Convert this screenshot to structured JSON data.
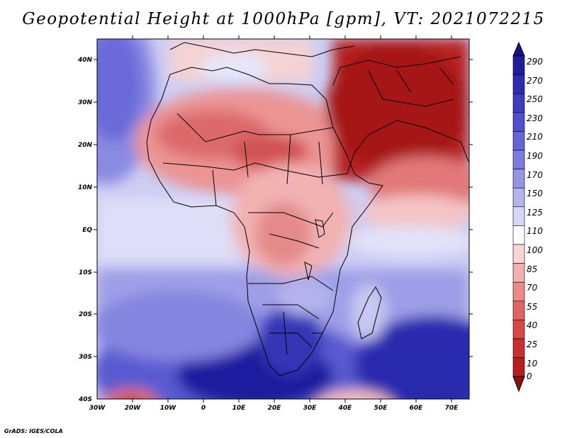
{
  "title": "Geopotential Height at 1000hPa [gpm], VT: 2021072215",
  "credit": "GrADS: IGES/COLA",
  "map": {
    "lat_labels": [
      "40N",
      "30N",
      "20N",
      "10N",
      "EQ",
      "10S",
      "20S",
      "30S",
      "40S"
    ],
    "lon_labels": [
      "30W",
      "20W",
      "10W",
      "0",
      "10E",
      "20E",
      "30E",
      "40E",
      "50E",
      "60E",
      "70E"
    ],
    "lat_range": [
      -40,
      45
    ],
    "lon_range": [
      -30,
      75
    ]
  },
  "colorbar": {
    "labels": [
      "290",
      "270",
      "250",
      "230",
      "210",
      "190",
      "170",
      "150",
      "125",
      "110",
      "100",
      "85",
      "70",
      "55",
      "40",
      "25",
      "10",
      "0"
    ],
    "colors": [
      "#1e1e99",
      "#2c2cae",
      "#3d3dc0",
      "#5050cc",
      "#6565d6",
      "#7c7cde",
      "#9595e6",
      "#b3b3ee",
      "#d6d6f6",
      "#ffffff",
      "#f8d6d6",
      "#f2b0b0",
      "#ea8a8a",
      "#e06666",
      "#d54848",
      "#c73030",
      "#b51e1e",
      "#a11414"
    ],
    "top_arrow_color": "#141480",
    "bottom_arrow_color": "#8c0e0e"
  }
}
